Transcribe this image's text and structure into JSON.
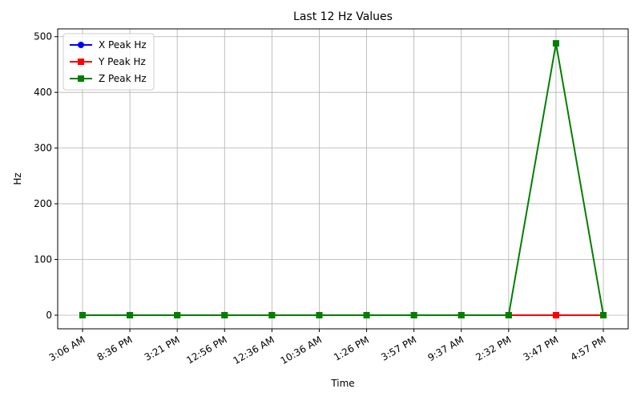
{
  "chart_data": {
    "type": "line",
    "title": "Last 12 Hz Values",
    "x_label": "Time",
    "y_label": "Hz",
    "categories": [
      "3:06 AM",
      "8:36 PM",
      "3:21 PM",
      "12:56 PM",
      "12:36 AM",
      "10:36 AM",
      "1:26 PM",
      "3:57 PM",
      "9:37 AM",
      "2:32 PM",
      "3:47 PM",
      "4:57 PM"
    ],
    "series": [
      {
        "name": "X Peak Hz",
        "color": "#0000ff",
        "marker": "circle",
        "values": [
          0,
          0,
          0,
          0,
          0,
          0,
          0,
          0,
          0,
          0,
          0,
          0
        ]
      },
      {
        "name": "Y Peak Hz",
        "color": "#ff0000",
        "marker": "square",
        "values": [
          0,
          0,
          0,
          0,
          0,
          0,
          0,
          0,
          0,
          0,
          0,
          0
        ]
      },
      {
        "name": "Z Peak Hz",
        "color": "#008000",
        "marker": "square",
        "values": [
          0,
          0,
          0,
          0,
          0,
          0,
          0,
          0,
          0,
          0,
          488,
          0
        ]
      }
    ],
    "ylim": [
      -24.5,
      514
    ],
    "yticks": [
      0,
      100,
      200,
      300,
      400,
      500
    ],
    "grid": true,
    "legend": "upper left"
  }
}
